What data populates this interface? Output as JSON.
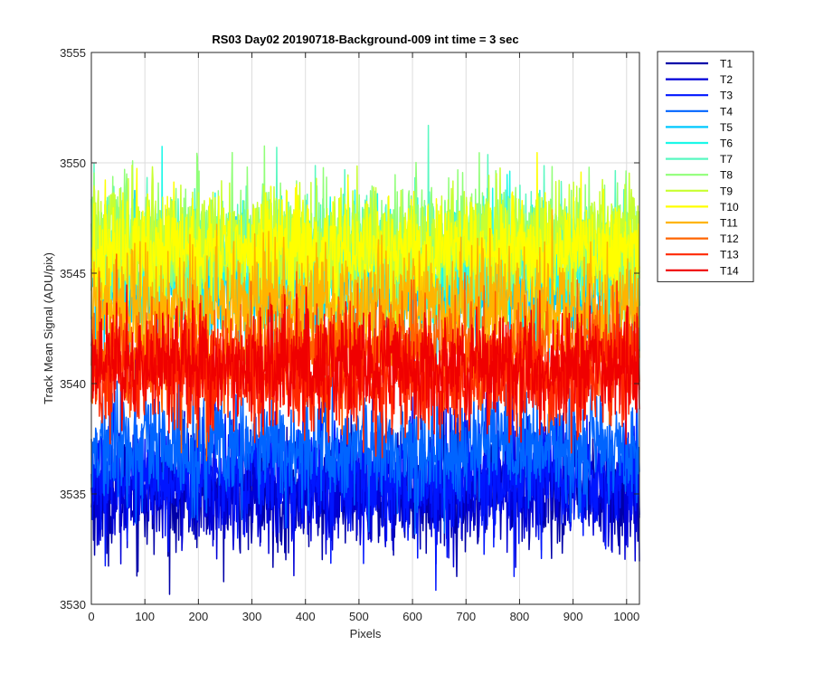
{
  "chart_data": {
    "type": "line",
    "title": "RS03 Day02 20190718-Background-009 int time = 3 sec",
    "xlabel": "Pixels",
    "ylabel": "Track Mean Signal (ADU/pix)",
    "xlim": [
      0,
      1024
    ],
    "ylim": [
      3530,
      3555
    ],
    "xticks": [
      0,
      100,
      200,
      300,
      400,
      500,
      600,
      700,
      800,
      900,
      1000
    ],
    "yticks": [
      3530,
      3535,
      3540,
      3545,
      3550,
      3555
    ],
    "grid": true,
    "legend_position": "outside-top-right",
    "n_points": 1024,
    "series_note": "Each track is a noisy trace over 1024 pixels; values listed as approximate mean and noise amplitude read from the plot.",
    "series": [
      {
        "name": "T1",
        "color": "#0000a8",
        "mean": 3535.0,
        "noise": 1.3
      },
      {
        "name": "T2",
        "color": "#0000d8",
        "mean": 3535.3,
        "noise": 1.3
      },
      {
        "name": "T3",
        "color": "#0016ff",
        "mean": 3535.8,
        "noise": 1.3
      },
      {
        "name": "T4",
        "color": "#0064ff",
        "mean": 3537.0,
        "noise": 1.3
      },
      {
        "name": "T5",
        "color": "#00c8ff",
        "mean": 3544.3,
        "noise": 1.3
      },
      {
        "name": "T6",
        "color": "#1cf8e8",
        "mean": 3545.3,
        "noise": 1.4
      },
      {
        "name": "T7",
        "color": "#58f8c0",
        "mean": 3546.0,
        "noise": 1.4
      },
      {
        "name": "T8",
        "color": "#90ff78",
        "mean": 3546.3,
        "noise": 1.4
      },
      {
        "name": "T9",
        "color": "#c8ff30",
        "mean": 3546.3,
        "noise": 1.3
      },
      {
        "name": "T10",
        "color": "#ffff00",
        "mean": 3546.0,
        "noise": 1.2
      },
      {
        "name": "T11",
        "color": "#ffb400",
        "mean": 3543.5,
        "noise": 1.3
      },
      {
        "name": "T12",
        "color": "#ff6400",
        "mean": 3541.5,
        "noise": 1.3
      },
      {
        "name": "T13",
        "color": "#ff2800",
        "mean": 3540.3,
        "noise": 1.3
      },
      {
        "name": "T14",
        "color": "#f00000",
        "mean": 3540.8,
        "noise": 1.2
      }
    ]
  }
}
